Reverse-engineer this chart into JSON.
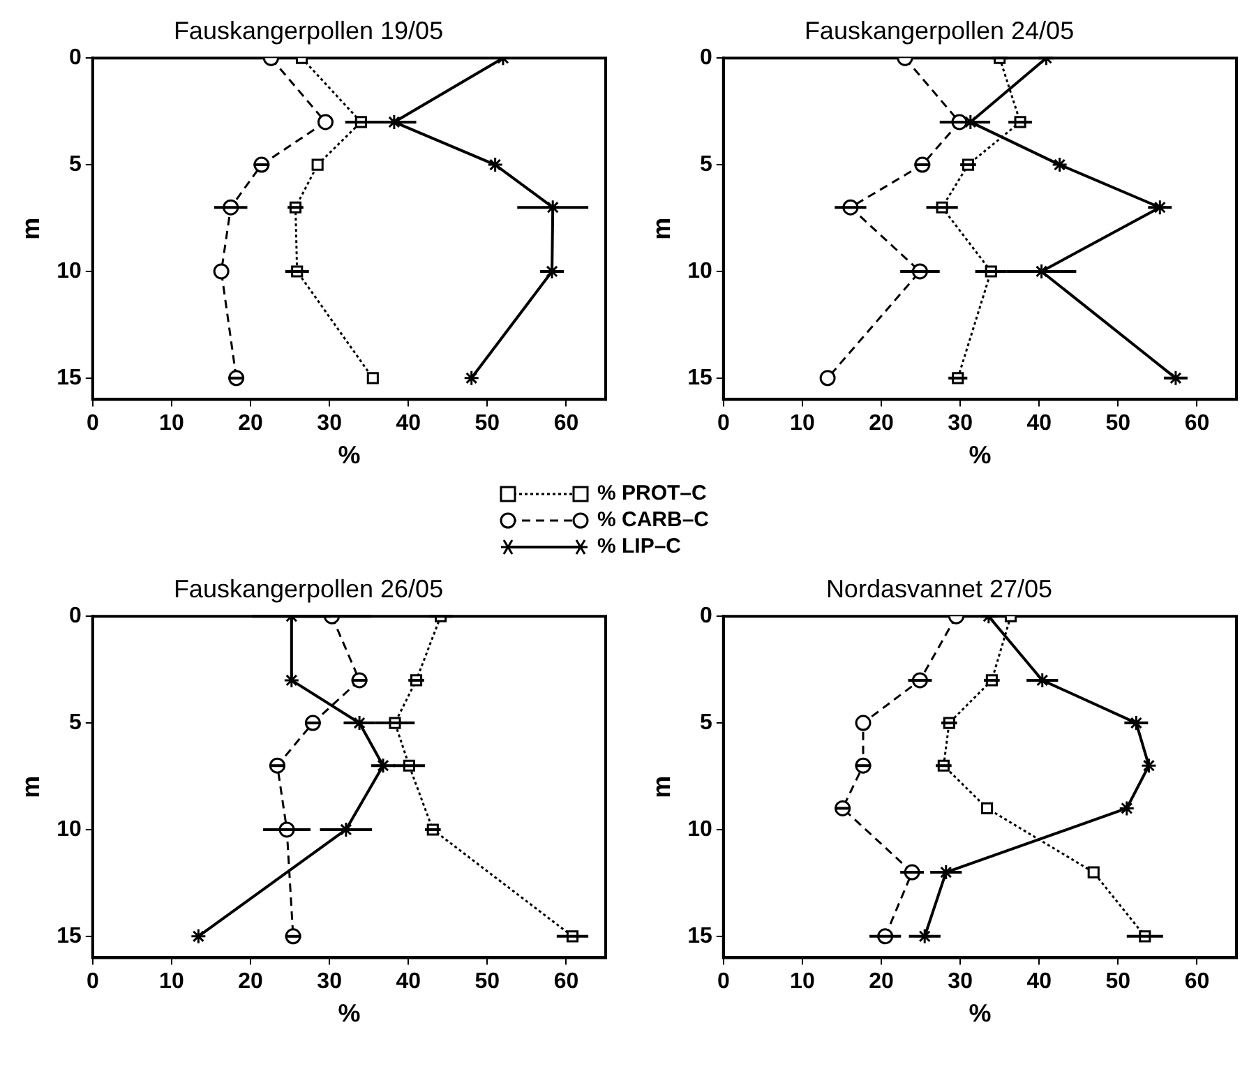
{
  "chart_data": [
    {
      "type": "line",
      "title": "Fauskangerpollen 19/05",
      "xlabel": "%",
      "ylabel": "m",
      "xlim": [
        0,
        65
      ],
      "xticks": [
        0,
        10,
        20,
        30,
        40,
        50,
        60
      ],
      "ylim": [
        16,
        0
      ],
      "yticks": [
        0,
        5,
        10,
        15
      ],
      "grid": false,
      "legend": "bottom",
      "series": [
        {
          "name": "% PROT–C",
          "color": "#000000",
          "marker": "square",
          "line_style": "dotted",
          "x": [
            26.5,
            34,
            28.5,
            25.7,
            25.9,
            35.5
          ],
          "values": [
            0,
            3,
            5,
            7,
            10,
            15
          ],
          "xerrors": [
            null,
            2,
            null,
            1,
            1.5,
            null
          ]
        },
        {
          "name": "% CARB–C",
          "color": "#000000",
          "marker": "circle",
          "line_style": "dashed",
          "x": [
            22.6,
            29.5,
            21.4,
            17.5,
            16.3,
            18.2
          ],
          "values": [
            0,
            3,
            5,
            7,
            10,
            15
          ],
          "xerrors": [
            null,
            null,
            1,
            2.1,
            null,
            1
          ]
        },
        {
          "name": "% LIP–C",
          "color": "#000000",
          "marker": "cross",
          "line_style": "solid",
          "x": [
            52,
            38.2,
            51,
            58.3,
            58.2,
            48
          ],
          "values": [
            0,
            3,
            5,
            7,
            10,
            15
          ],
          "xerrors": [
            null,
            2.8,
            null,
            4.5,
            1.5,
            null
          ]
        }
      ]
    },
    {
      "type": "line",
      "title": "Fauskangerpollen 24/05",
      "xlabel": "%",
      "ylabel": "m",
      "xlim": [
        0,
        65
      ],
      "xticks": [
        0,
        10,
        20,
        30,
        40,
        50,
        60
      ],
      "ylim": [
        16,
        0
      ],
      "yticks": [
        0,
        5,
        10,
        15
      ],
      "grid": false,
      "series": [
        {
          "color": "#000000",
          "marker": "square",
          "line_style": "dotted",
          "x": [
            35,
            37.6,
            31,
            27.7,
            33.9,
            29.7
          ],
          "values": [
            0,
            3,
            5,
            7,
            10,
            15
          ],
          "xerrors": [
            1,
            1.5,
            1,
            2,
            2,
            1.2
          ]
        },
        {
          "color": "#000000",
          "marker": "circle",
          "line_style": "dashed",
          "x": [
            23,
            29.9,
            25.2,
            16.1,
            24.9,
            13.2
          ],
          "values": [
            0,
            3,
            5,
            7,
            10,
            15
          ],
          "xerrors": [
            null,
            2.5,
            1,
            2,
            2.5,
            null
          ]
        },
        {
          "color": "#000000",
          "marker": "cross",
          "line_style": "solid",
          "x": [
            40.9,
            31.3,
            42.6,
            55.3,
            40.3,
            57.3
          ],
          "values": [
            0,
            3,
            5,
            7,
            10,
            15
          ],
          "xerrors": [
            1,
            2.5,
            null,
            1.5,
            4.4,
            1.5
          ]
        }
      ]
    },
    {
      "type": "line",
      "title": "Fauskangerpollen 26/05",
      "xlabel": "%",
      "ylabel": "m",
      "xlim": [
        0,
        65
      ],
      "xticks": [
        0,
        10,
        20,
        30,
        40,
        50,
        60
      ],
      "ylim": [
        16,
        0
      ],
      "yticks": [
        0,
        5,
        10,
        15
      ],
      "grid": false,
      "series": [
        {
          "color": "#000000",
          "marker": "square",
          "line_style": "dotted",
          "x": [
            44.1,
            41,
            38.3,
            40.1,
            43.1,
            60.8
          ],
          "values": [
            0,
            3,
            5,
            7,
            10,
            15
          ],
          "xerrors": [
            1.5,
            1,
            2.5,
            2,
            1,
            2
          ]
        },
        {
          "color": "#000000",
          "marker": "circle",
          "line_style": "dashed",
          "x": [
            30.3,
            33.8,
            27.9,
            23.4,
            24.6,
            25.4
          ],
          "values": [
            0,
            3,
            5,
            7,
            10,
            15
          ],
          "xerrors": [
            5,
            1,
            1,
            1,
            3,
            1
          ]
        },
        {
          "color": "#000000",
          "marker": "cross",
          "line_style": "solid",
          "x": [
            25.2,
            25.2,
            33.8,
            36.8,
            32.1,
            13.4
          ],
          "values": [
            0,
            3,
            5,
            7,
            10,
            15
          ],
          "xerrors": [
            5,
            null,
            2,
            1.5,
            3.3,
            null
          ]
        }
      ]
    },
    {
      "type": "line",
      "title": "Nordasvannet 27/05",
      "xlabel": "%",
      "ylabel": "m",
      "xlim": [
        0,
        65
      ],
      "xticks": [
        0,
        10,
        20,
        30,
        40,
        50,
        60
      ],
      "ylim": [
        16,
        0
      ],
      "yticks": [
        0,
        5,
        10,
        15
      ],
      "grid": false,
      "series": [
        {
          "color": "#000000",
          "marker": "square",
          "line_style": "dotted",
          "x": [
            36.4,
            34,
            28.6,
            27.9,
            33.4,
            46.9,
            53.4
          ],
          "values": [
            0,
            3,
            5,
            7,
            9,
            12,
            15
          ],
          "xerrors": [
            null,
            1,
            1,
            1,
            null,
            null,
            2.3
          ]
        },
        {
          "color": "#000000",
          "marker": "circle",
          "line_style": "dashed",
          "x": [
            29.5,
            24.9,
            17.7,
            17.7,
            15.1,
            23.9,
            20.5
          ],
          "values": [
            0,
            3,
            5,
            7,
            9,
            12,
            15
          ],
          "xerrors": [
            null,
            1.5,
            null,
            1,
            1,
            1.5,
            2
          ]
        },
        {
          "color": "#000000",
          "marker": "cross",
          "line_style": "solid",
          "x": [
            33.6,
            40.4,
            52.3,
            53.9,
            51.1,
            28.2,
            25.5
          ],
          "values": [
            0,
            3,
            5,
            7,
            9,
            12,
            15
          ],
          "xerrors": [
            1,
            2,
            1.5,
            null,
            null,
            2,
            2
          ]
        }
      ]
    }
  ]
}
